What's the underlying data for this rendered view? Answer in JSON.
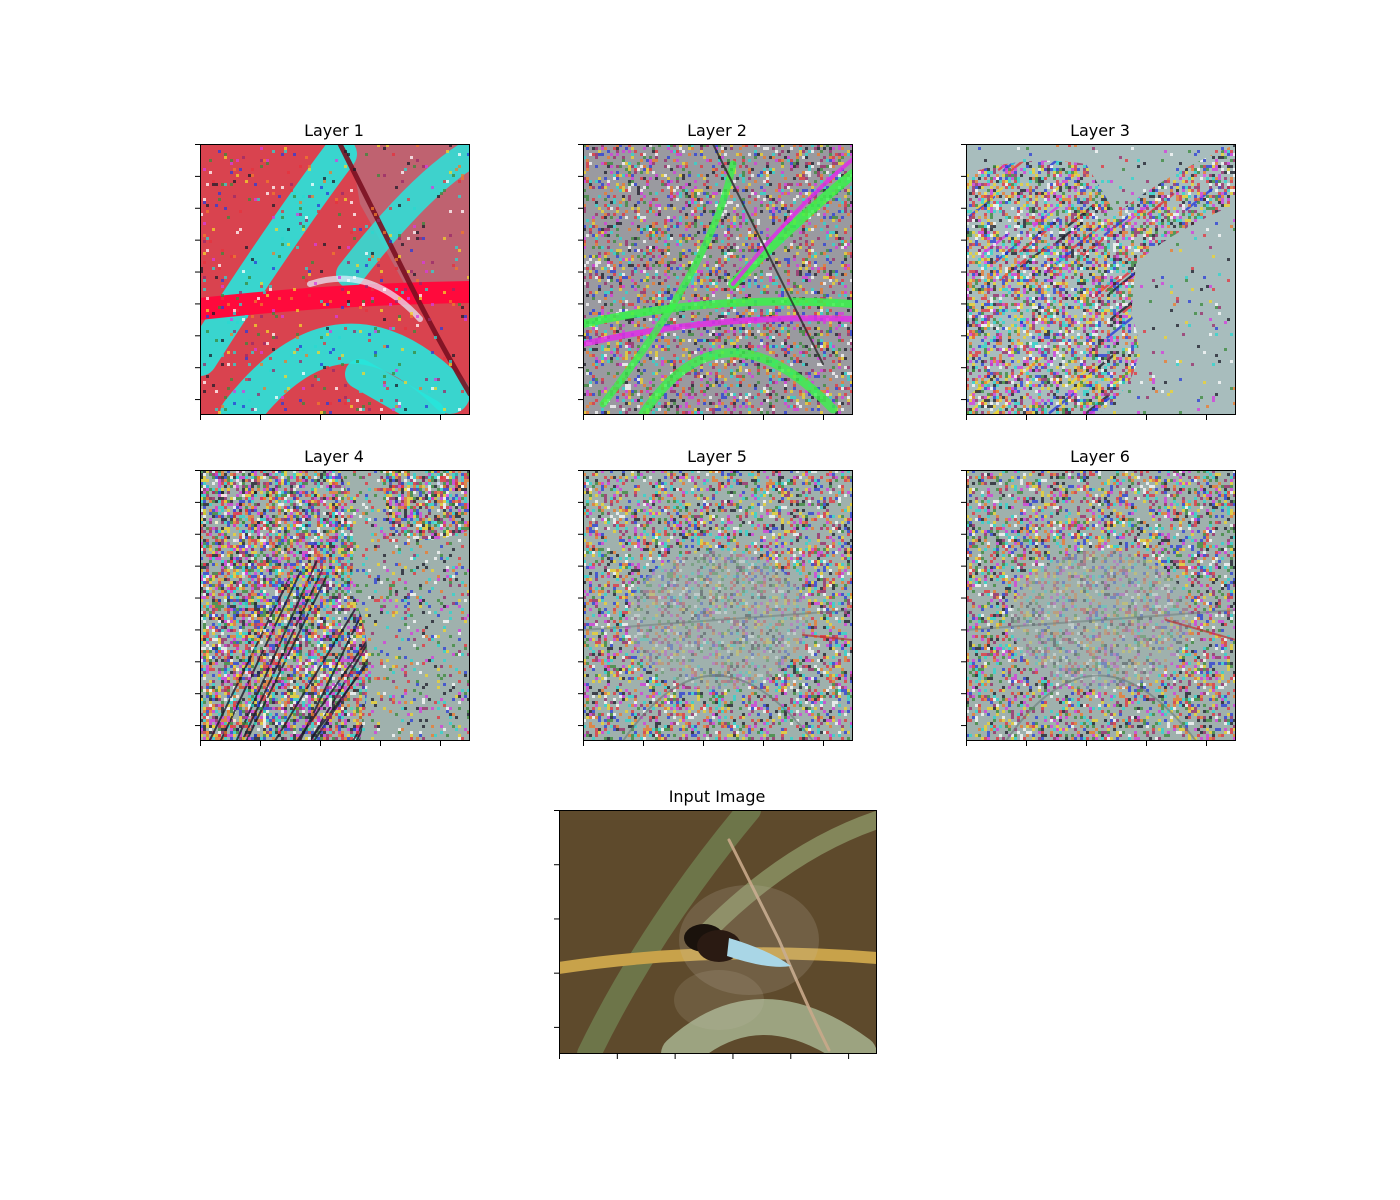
{
  "figure": {
    "panels": [
      {
        "title": "Layer 1",
        "style": "layer1",
        "xticks": 5,
        "yticks": 9
      },
      {
        "title": "Layer 2",
        "style": "layer2",
        "xticks": 5,
        "yticks": 9
      },
      {
        "title": "Layer 3",
        "style": "layer3",
        "xticks": 5,
        "yticks": 9
      },
      {
        "title": "Layer 4",
        "style": "layer4",
        "xticks": 5,
        "yticks": 9
      },
      {
        "title": "Layer 5",
        "style": "layer5",
        "xticks": 5,
        "yticks": 9
      },
      {
        "title": "Layer 6",
        "style": "layer6",
        "xticks": 5,
        "yticks": 9
      },
      {
        "title": "Input Image",
        "style": "input",
        "xticks": 6,
        "yticks": 5
      }
    ],
    "colors": {
      "layer1_bg": "#d9434f",
      "layer1_cyan": "#27e6dc",
      "layer1_red": "#ff0a3c",
      "layer2_bg": "#9a9aa0",
      "layer2_green": "#38f24a",
      "layer2_magenta": "#e02ee6",
      "layer3_bg": "#a8bdbd",
      "noise_bg": "#9fb1ad",
      "input_bg": "#5e4a2c",
      "input_leaf": "#6f7a4c",
      "input_stem": "#c8a24a",
      "input_body": "#a9d6e6"
    }
  }
}
